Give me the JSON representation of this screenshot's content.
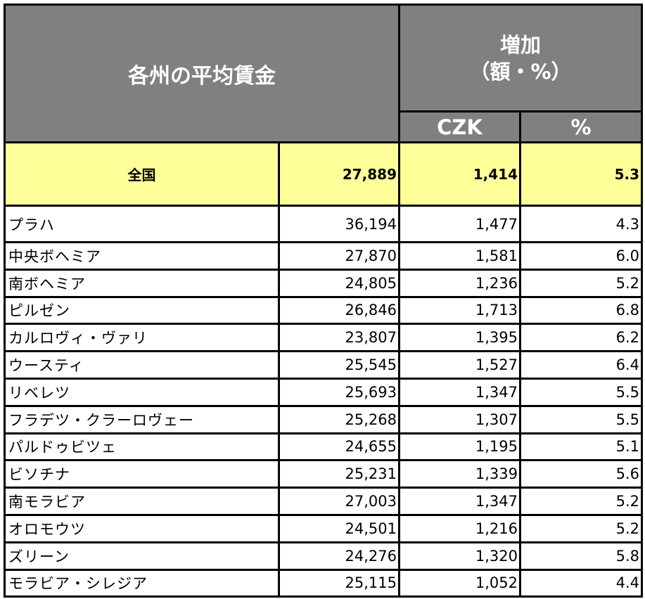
{
  "header": {
    "title": "各州の平均賃金",
    "increase_line1": "増加",
    "increase_line2": "（額・%）",
    "col_czk": "CZK",
    "col_pct": "%"
  },
  "chart_data": {
    "type": "table",
    "columns": [
      "各州の平均賃金",
      "",
      "CZK",
      "%"
    ],
    "national": {
      "region": "全国",
      "wage": "27,889",
      "increase_czk": "1,414",
      "increase_pct": "5.3"
    },
    "rows": [
      {
        "region": "プラハ",
        "wage": "36,194",
        "increase_czk": "1,477",
        "increase_pct": "4.3"
      },
      {
        "region": "中央ボヘミア",
        "wage": "27,870",
        "increase_czk": "1,581",
        "increase_pct": "6.0"
      },
      {
        "region": "南ボヘミア",
        "wage": "24,805",
        "increase_czk": "1,236",
        "increase_pct": "5.2"
      },
      {
        "region": "ピルゼン",
        "wage": "26,846",
        "increase_czk": "1,713",
        "increase_pct": "6.8"
      },
      {
        "region": "カルロヴィ・ヴァリ",
        "wage": "23,807",
        "increase_czk": "1,395",
        "increase_pct": "6.2"
      },
      {
        "region": "ウースティ",
        "wage": "25,545",
        "increase_czk": "1,527",
        "increase_pct": "6.4"
      },
      {
        "region": "リベレツ",
        "wage": "25,693",
        "increase_czk": "1,347",
        "increase_pct": "5.5"
      },
      {
        "region": "フラデツ・クラーロヴェー",
        "wage": "25,268",
        "increase_czk": "1,307",
        "increase_pct": "5.5"
      },
      {
        "region": "パルドゥビツェ",
        "wage": "24,655",
        "increase_czk": "1,195",
        "increase_pct": "5.1"
      },
      {
        "region": "ビソチナ",
        "wage": "25,231",
        "increase_czk": "1,339",
        "increase_pct": "5.6"
      },
      {
        "region": "南モラビア",
        "wage": "27,003",
        "increase_czk": "1,347",
        "increase_pct": "5.2"
      },
      {
        "region": "オロモウツ",
        "wage": "24,501",
        "increase_czk": "1,216",
        "increase_pct": "5.2"
      },
      {
        "region": "ズリーン",
        "wage": "24,276",
        "increase_czk": "1,320",
        "increase_pct": "5.8"
      },
      {
        "region": "モラビア・シレジア",
        "wage": "25,115",
        "increase_czk": "1,052",
        "increase_pct": "4.4"
      }
    ]
  },
  "colors": {
    "header_bg": "#808080",
    "header_text": "#ffffff",
    "national_bg": "#ffff99",
    "border": "#000000"
  }
}
